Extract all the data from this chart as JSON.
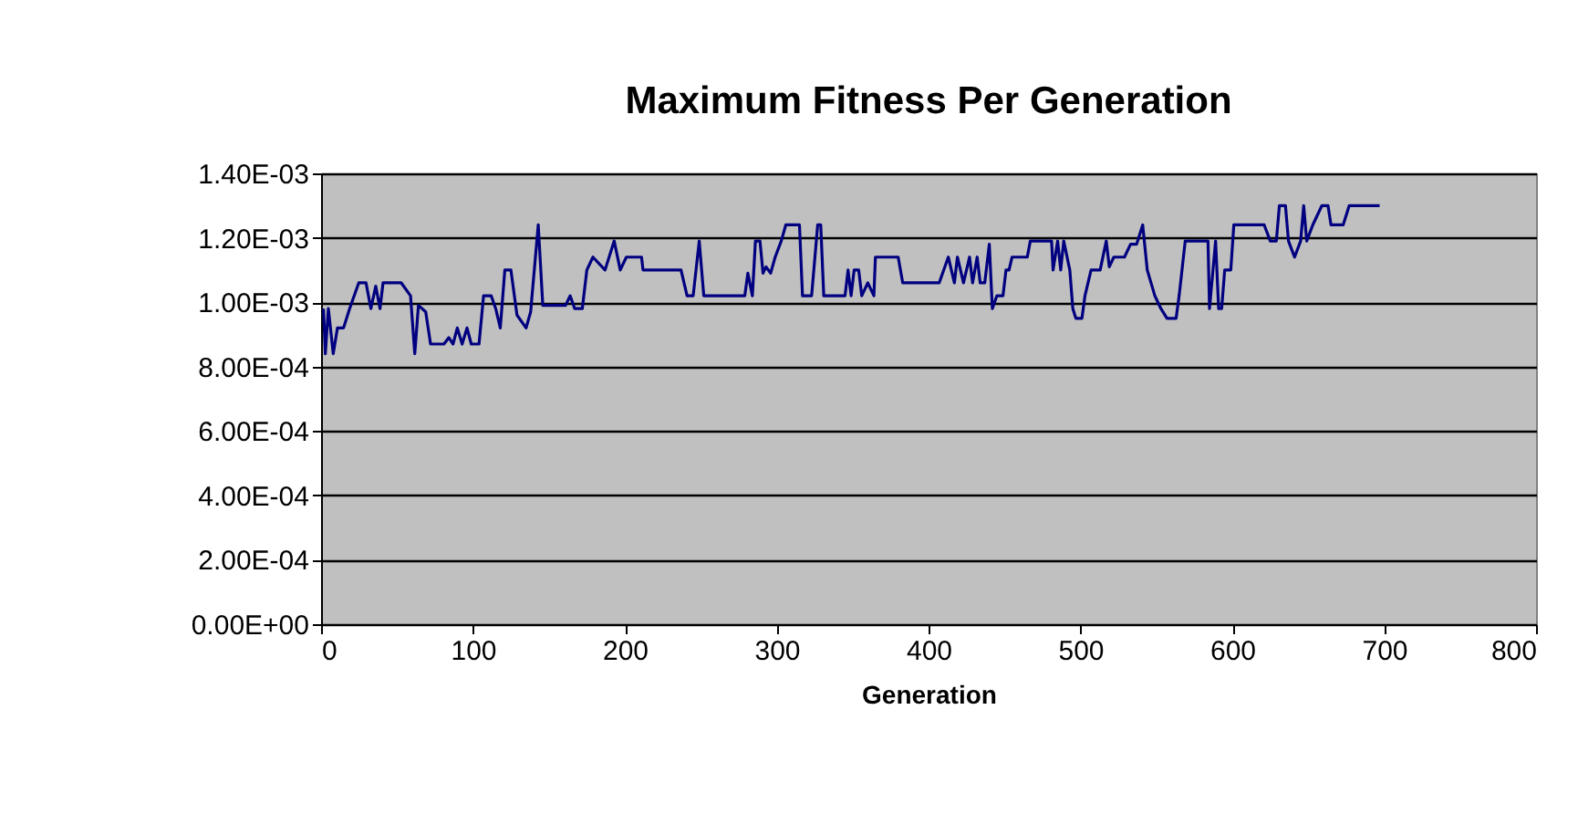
{
  "chart_data": {
    "type": "line",
    "title": "Maximum Fitness Per Generation",
    "xlabel": "Generation",
    "xlim": [
      0,
      800
    ],
    "xticks": [
      0,
      100,
      200,
      300,
      400,
      500,
      600,
      700,
      800
    ],
    "ylim": [
      0,
      0.0014
    ],
    "yticks": [
      {
        "value": 0,
        "label": "0.00E+00"
      },
      {
        "value": 0.0002,
        "label": "2.00E-04"
      },
      {
        "value": 0.0004,
        "label": "4.00E-04"
      },
      {
        "value": 0.0006,
        "label": "6.00E-04"
      },
      {
        "value": 0.0008,
        "label": "8.00E-04"
      },
      {
        "value": 0.001,
        "label": "1.00E-03"
      },
      {
        "value": 0.0012,
        "label": "1.20E-03"
      },
      {
        "value": 0.0014,
        "label": "1.40E-03"
      }
    ],
    "grid": "y",
    "marker": "none",
    "line_style": "solid",
    "series": [
      {
        "color": "#000080",
        "x": [
          1.6,
          2.8,
          4.8,
          8,
          10.8,
          14.8,
          18.8,
          24.8,
          29.6,
          32.8,
          36,
          38.8,
          40.8,
          52.8,
          58.9,
          61.7,
          64.1,
          68.9,
          72.1,
          80.9,
          84.1,
          86.9,
          89.7,
          92.9,
          96.1,
          98.9,
          104,
          107,
          112,
          115,
          118,
          121,
          125,
          129,
          135,
          138,
          143,
          146,
          161,
          164,
          167,
          172,
          175,
          179,
          187,
          193,
          197,
          201,
          211,
          212,
          237,
          241,
          245,
          249,
          252,
          279,
          281,
          284,
          286,
          289,
          291,
          293,
          296,
          299,
          303,
          306,
          315,
          317,
          323,
          327,
          329,
          331,
          345,
          347,
          349,
          351,
          354,
          356,
          360,
          364,
          365,
          380,
          383,
          407,
          413,
          417,
          419,
          423,
          427,
          429,
          432,
          434,
          437,
          440,
          442,
          445,
          449,
          451,
          453,
          455,
          465,
          467,
          481,
          482,
          485,
          487,
          489,
          493,
          495,
          497,
          501,
          503,
          507,
          513,
          517,
          519,
          522,
          529,
          533,
          537,
          541,
          544,
          549,
          553,
          557,
          563,
          565,
          569,
          584,
          585,
          589,
          591,
          593,
          595,
          599,
          601,
          621,
          625,
          629,
          631,
          635,
          637,
          641,
          645,
          647,
          649,
          653,
          659,
          663,
          665,
          673,
          677,
          697
        ],
        "values": [
          0.00098,
          0.00084,
          0.00098,
          0.00084,
          0.00092,
          0.00092,
          0.00098,
          0.00106,
          0.00106,
          0.00098,
          0.00105,
          0.00098,
          0.00106,
          0.00106,
          0.00102,
          0.00084,
          0.00099,
          0.00097,
          0.00087,
          0.00087,
          0.00089,
          0.00087,
          0.00092,
          0.00087,
          0.00092,
          0.00087,
          0.00087,
          0.00102,
          0.00102,
          0.00098,
          0.00092,
          0.0011,
          0.0011,
          0.00096,
          0.00092,
          0.00097,
          0.00124,
          0.00099,
          0.00099,
          0.00102,
          0.00098,
          0.00098,
          0.0011,
          0.00114,
          0.0011,
          0.00119,
          0.0011,
          0.00114,
          0.00114,
          0.0011,
          0.0011,
          0.00102,
          0.00102,
          0.00119,
          0.00102,
          0.00102,
          0.00109,
          0.00102,
          0.00119,
          0.00119,
          0.00109,
          0.00111,
          0.00109,
          0.00114,
          0.00119,
          0.00124,
          0.00124,
          0.00102,
          0.00102,
          0.00124,
          0.00124,
          0.00102,
          0.00102,
          0.0011,
          0.00102,
          0.0011,
          0.0011,
          0.00102,
          0.00106,
          0.00102,
          0.00114,
          0.00114,
          0.00106,
          0.00106,
          0.00114,
          0.00106,
          0.00114,
          0.00106,
          0.00114,
          0.00106,
          0.00114,
          0.00106,
          0.00106,
          0.00118,
          0.00098,
          0.00102,
          0.00102,
          0.0011,
          0.0011,
          0.00114,
          0.00114,
          0.00119,
          0.00119,
          0.0011,
          0.00119,
          0.0011,
          0.00119,
          0.0011,
          0.00098,
          0.00095,
          0.00095,
          0.00102,
          0.0011,
          0.0011,
          0.00119,
          0.00111,
          0.00114,
          0.00114,
          0.00118,
          0.00118,
          0.00124,
          0.0011,
          0.00102,
          0.00098,
          0.00095,
          0.00095,
          0.00102,
          0.00119,
          0.00119,
          0.00098,
          0.00119,
          0.00098,
          0.00098,
          0.0011,
          0.0011,
          0.00124,
          0.00124,
          0.00119,
          0.00119,
          0.0013,
          0.0013,
          0.00119,
          0.00114,
          0.00119,
          0.0013,
          0.00119,
          0.00124,
          0.0013,
          0.0013,
          0.00124,
          0.00124,
          0.0013,
          0.0013
        ]
      }
    ]
  }
}
